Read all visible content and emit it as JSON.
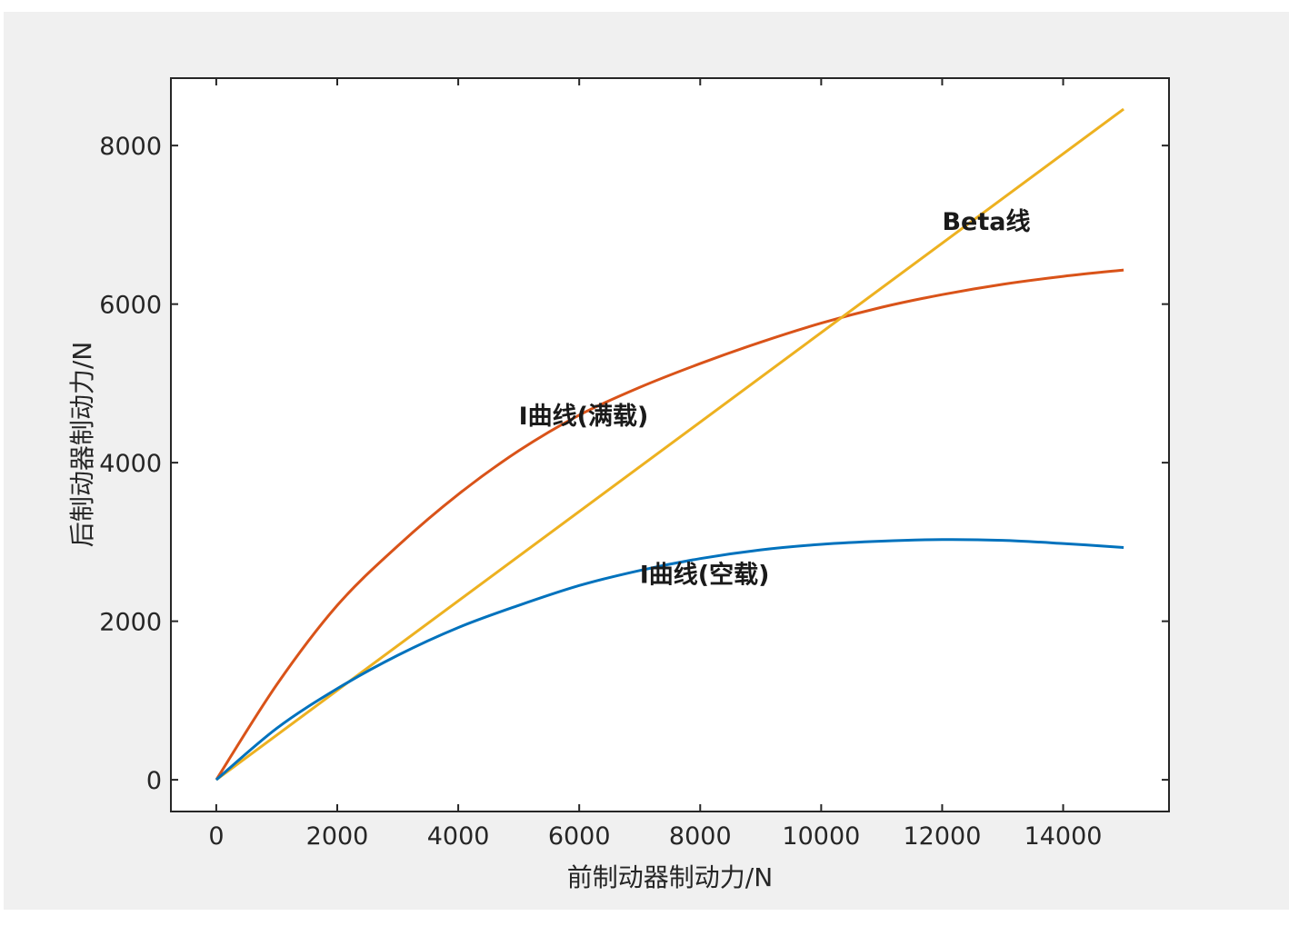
{
  "chart_data": {
    "type": "line",
    "title": "",
    "xlabel": "前制动器制动力/N",
    "ylabel": "后制动器制动力/N",
    "xlim": [
      -750,
      15750
    ],
    "ylim": [
      -400,
      8850
    ],
    "xticks": [
      0,
      2000,
      4000,
      6000,
      8000,
      10000,
      12000,
      14000
    ],
    "yticks": [
      0,
      2000,
      4000,
      6000,
      8000
    ],
    "xtick_labels": [
      "0",
      "2000",
      "4000",
      "6000",
      "8000",
      "10000",
      "12000",
      "14000"
    ],
    "ytick_labels": [
      "0",
      "2000",
      "4000",
      "6000",
      "8000"
    ],
    "grid": false,
    "legend": "none",
    "series": [
      {
        "name": "I曲线(满载)",
        "color": "#d95319",
        "x": [
          0,
          1000,
          2000,
          3000,
          4000,
          5000,
          6000,
          7000,
          8000,
          9000,
          10000,
          11000,
          12000,
          13000,
          14000,
          15000
        ],
        "y": [
          0,
          1200,
          2200,
          2950,
          3600,
          4150,
          4600,
          4950,
          5250,
          5520,
          5760,
          5960,
          6120,
          6250,
          6350,
          6430
        ]
      },
      {
        "name": "Beta线",
        "color": "#edb120",
        "x": [
          0,
          15000
        ],
        "y": [
          0,
          8460
        ]
      },
      {
        "name": "I曲线(空载)",
        "color": "#0072bd",
        "x": [
          0,
          1000,
          2000,
          3000,
          4000,
          5000,
          6000,
          7000,
          8000,
          9000,
          10000,
          11000,
          12000,
          13000,
          14000,
          15000
        ],
        "y": [
          0,
          650,
          1150,
          1570,
          1920,
          2200,
          2450,
          2640,
          2790,
          2900,
          2970,
          3010,
          3030,
          3020,
          2980,
          2930
        ]
      }
    ],
    "annotations": [
      {
        "text": "Beta线",
        "x": 12000,
        "y": 7050
      },
      {
        "text": "I曲线(满载)",
        "x": 5000,
        "y": 4600
      },
      {
        "text": "I曲线(空载)",
        "x": 7000,
        "y": 2600
      }
    ]
  }
}
